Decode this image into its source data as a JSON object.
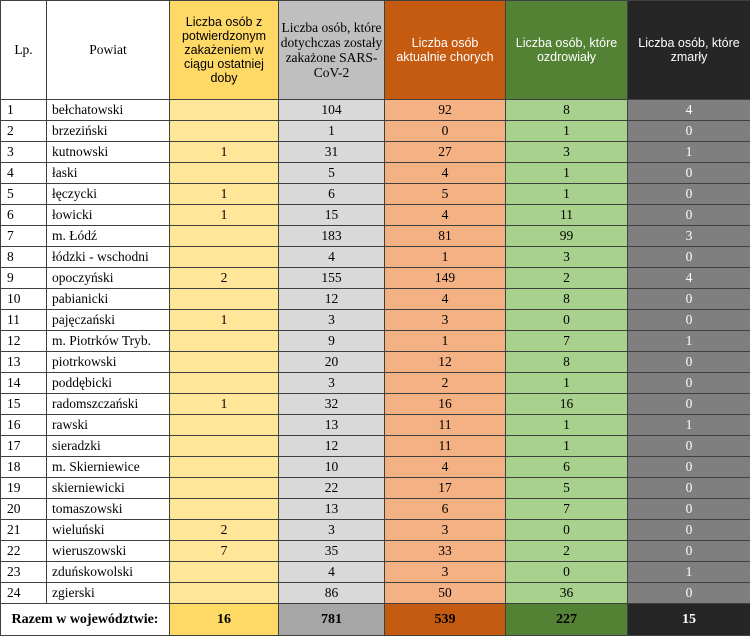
{
  "headers": {
    "lp": "Lp.",
    "powiat": "Powiat",
    "new_cases": "Liczba osób z potwierdzonym zakażeniem w ciągu ostatniej doby",
    "total_infected": "Liczba osób, które dotychczas zostały zakażone SARS-CoV-2",
    "active": "Liczba osób aktualnie chorych",
    "recovered": "Liczba osób, które ozdrowiały",
    "deceased": "Liczba osób, które zmarły"
  },
  "rows": [
    {
      "lp": "1",
      "powiat": "bełchatowski",
      "new": "",
      "total": "104",
      "active": "92",
      "recovered": "8",
      "deceased": "4"
    },
    {
      "lp": "2",
      "powiat": "brzeziński",
      "new": "",
      "total": "1",
      "active": "0",
      "recovered": "1",
      "deceased": "0"
    },
    {
      "lp": "3",
      "powiat": "kutnowski",
      "new": "1",
      "total": "31",
      "active": "27",
      "recovered": "3",
      "deceased": "1"
    },
    {
      "lp": "4",
      "powiat": "łaski",
      "new": "",
      "total": "5",
      "active": "4",
      "recovered": "1",
      "deceased": "0"
    },
    {
      "lp": "5",
      "powiat": "łęczycki",
      "new": "1",
      "total": "6",
      "active": "5",
      "recovered": "1",
      "deceased": "0"
    },
    {
      "lp": "6",
      "powiat": "łowicki",
      "new": "1",
      "total": "15",
      "active": "4",
      "recovered": "11",
      "deceased": "0"
    },
    {
      "lp": "7",
      "powiat": "m. Łódź",
      "new": "",
      "total": "183",
      "active": "81",
      "recovered": "99",
      "deceased": "3"
    },
    {
      "lp": "8",
      "powiat": "łódzki - wschodni",
      "new": "",
      "total": "4",
      "active": "1",
      "recovered": "3",
      "deceased": "0"
    },
    {
      "lp": "9",
      "powiat": "opoczyński",
      "new": "2",
      "total": "155",
      "active": "149",
      "recovered": "2",
      "deceased": "4"
    },
    {
      "lp": "10",
      "powiat": "pabianicki",
      "new": "",
      "total": "12",
      "active": "4",
      "recovered": "8",
      "deceased": "0"
    },
    {
      "lp": "11",
      "powiat": "pajęczański",
      "new": "1",
      "total": "3",
      "active": "3",
      "recovered": "0",
      "deceased": "0"
    },
    {
      "lp": "12",
      "powiat": "m. Piotrków Tryb.",
      "new": "",
      "total": "9",
      "active": "1",
      "recovered": "7",
      "deceased": "1"
    },
    {
      "lp": "13",
      "powiat": "piotrkowski",
      "new": "",
      "total": "20",
      "active": "12",
      "recovered": "8",
      "deceased": "0"
    },
    {
      "lp": "14",
      "powiat": "poddębicki",
      "new": "",
      "total": "3",
      "active": "2",
      "recovered": "1",
      "deceased": "0"
    },
    {
      "lp": "15",
      "powiat": "radomszczański",
      "new": "1",
      "total": "32",
      "active": "16",
      "recovered": "16",
      "deceased": "0"
    },
    {
      "lp": "16",
      "powiat": "rawski",
      "new": "",
      "total": "13",
      "active": "11",
      "recovered": "1",
      "deceased": "1"
    },
    {
      "lp": "17",
      "powiat": "sieradzki",
      "new": "",
      "total": "12",
      "active": "11",
      "recovered": "1",
      "deceased": "0"
    },
    {
      "lp": "18",
      "powiat": "m. Skierniewice",
      "new": "",
      "total": "10",
      "active": "4",
      "recovered": "6",
      "deceased": "0"
    },
    {
      "lp": "19",
      "powiat": "skierniewicki",
      "new": "",
      "total": "22",
      "active": "17",
      "recovered": "5",
      "deceased": "0"
    },
    {
      "lp": "20",
      "powiat": "tomaszowski",
      "new": "",
      "total": "13",
      "active": "6",
      "recovered": "7",
      "deceased": "0"
    },
    {
      "lp": "21",
      "powiat": "wieluński",
      "new": "2",
      "total": "3",
      "active": "3",
      "recovered": "0",
      "deceased": "0"
    },
    {
      "lp": "22",
      "powiat": "wieruszowski",
      "new": "7",
      "total": "35",
      "active": "33",
      "recovered": "2",
      "deceased": "0"
    },
    {
      "lp": "23",
      "powiat": "zduńskowolski",
      "new": "",
      "total": "4",
      "active": "3",
      "recovered": "0",
      "deceased": "1"
    },
    {
      "lp": "24",
      "powiat": "zgierski",
      "new": "",
      "total": "86",
      "active": "50",
      "recovered": "36",
      "deceased": "0"
    }
  ],
  "totals": {
    "label": "Razem w województwie:",
    "new": "16",
    "total": "781",
    "active": "539",
    "recovered": "227",
    "deceased": "15"
  },
  "colors": {
    "new_header": "#ffd966",
    "new_cell": "#ffe699",
    "total_header": "#bfbfbf",
    "total_cell": "#d9d9d9",
    "active_header": "#c55a11",
    "active_cell": "#f4b183",
    "recovered_header": "#548235",
    "recovered_cell": "#a9d18e",
    "deceased_header": "#262626",
    "deceased_cell": "#7f7f7f"
  }
}
